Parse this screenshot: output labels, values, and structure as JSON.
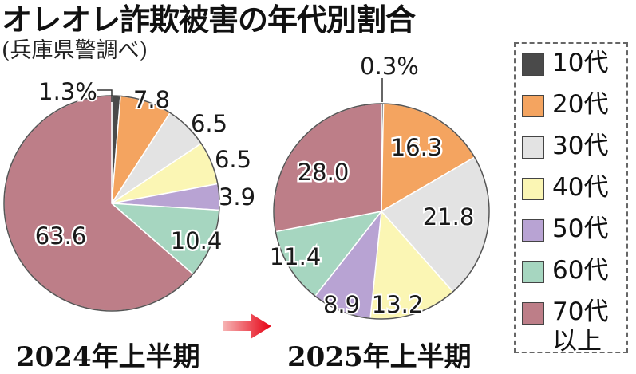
{
  "title": "オレオレ詐欺被害の年代別割合",
  "subtitle": "(兵庫県警調べ)",
  "legend": [
    {
      "label": "10代",
      "color": "#4a4a4a"
    },
    {
      "label": "20代",
      "color": "#f4a460"
    },
    {
      "label": "30代",
      "color": "#e3e3e3"
    },
    {
      "label": "40代",
      "color": "#fbf6b4"
    },
    {
      "label": "50代",
      "color": "#b8a3d3"
    },
    {
      "label": "60代",
      "color": "#a6d6c0"
    },
    {
      "label": "70代\n以上",
      "color": "#bd7e88"
    }
  ],
  "chart_data": [
    {
      "type": "pie",
      "title": "2024年上半期",
      "unit": "%",
      "categories": [
        "10代",
        "20代",
        "30代",
        "40代",
        "50代",
        "60代",
        "70代以上"
      ],
      "values": [
        1.3,
        7.8,
        6.5,
        6.5,
        3.9,
        10.4,
        63.6
      ],
      "labels": [
        "1.3%",
        "7.8",
        "6.5",
        "6.5",
        "3.9",
        "10.4",
        "63.6"
      ]
    },
    {
      "type": "pie",
      "title": "2025年上半期",
      "unit": "%",
      "categories": [
        "10代",
        "20代",
        "30代",
        "40代",
        "50代",
        "60代",
        "70代以上"
      ],
      "values": [
        0.3,
        16.3,
        21.8,
        13.2,
        8.9,
        11.4,
        28.0
      ],
      "labels": [
        "0.3%",
        "16.3",
        "21.8",
        "13.2",
        "8.9",
        "11.4",
        "28.0"
      ]
    }
  ]
}
